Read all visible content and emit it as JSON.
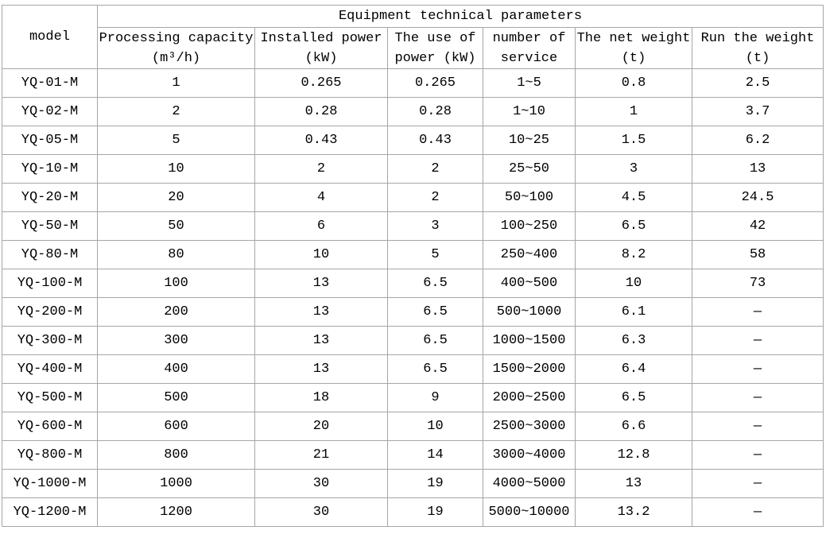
{
  "table": {
    "title": "Equipment technical parameters",
    "corner_header": "model",
    "border_color": "#a6a6a6",
    "text_color": "#000000",
    "columns": [
      {
        "line1": "Processing capacity",
        "line2": "(m³/h)"
      },
      {
        "line1": "Installed power",
        "line2": "(kW)"
      },
      {
        "line1": "The use of",
        "line2": "power (kW)"
      },
      {
        "line1": "number of",
        "line2": "service"
      },
      {
        "line1": "The net weight",
        "line2": "(t)"
      },
      {
        "line1": "Run the weight",
        "line2": "(t)"
      }
    ],
    "rows": [
      [
        "YQ-01-M",
        "1",
        "0.265",
        "0.265",
        "1~5",
        "0.8",
        "2.5"
      ],
      [
        "YQ-02-M",
        "2",
        "0.28",
        "0.28",
        "1~10",
        "1",
        "3.7"
      ],
      [
        "YQ-05-M",
        "5",
        "0.43",
        "0.43",
        "10~25",
        "1.5",
        "6.2"
      ],
      [
        "YQ-10-M",
        "10",
        "2",
        "2",
        "25~50",
        "3",
        "13"
      ],
      [
        "YQ-20-M",
        "20",
        "4",
        "2",
        "50~100",
        "4.5",
        "24.5"
      ],
      [
        "YQ-50-M",
        "50",
        "6",
        "3",
        "100~250",
        "6.5",
        "42"
      ],
      [
        "YQ-80-M",
        "80",
        "10",
        "5",
        "250~400",
        "8.2",
        "58"
      ],
      [
        "YQ-100-M",
        "100",
        "13",
        "6.5",
        "400~500",
        "10",
        "73"
      ],
      [
        "YQ-200-M",
        "200",
        "13",
        "6.5",
        "500~1000",
        "6.1",
        "—"
      ],
      [
        "YQ-300-M",
        "300",
        "13",
        "6.5",
        "1000~1500",
        "6.3",
        "—"
      ],
      [
        "YQ-400-M",
        "400",
        "13",
        "6.5",
        "1500~2000",
        "6.4",
        "—"
      ],
      [
        "YQ-500-M",
        "500",
        "18",
        "9",
        "2000~2500",
        "6.5",
        "—"
      ],
      [
        "YQ-600-M",
        "600",
        "20",
        "10",
        "2500~3000",
        "6.6",
        "—"
      ],
      [
        "YQ-800-M",
        "800",
        "21",
        "14",
        "3000~4000",
        "12.8",
        "—"
      ],
      [
        "YQ-1000-M",
        "1000",
        "30",
        "19",
        "4000~5000",
        "13",
        "—"
      ],
      [
        "YQ-1200-M",
        "1200",
        "30",
        "19",
        "5000~10000",
        "13.2",
        "—"
      ]
    ]
  }
}
